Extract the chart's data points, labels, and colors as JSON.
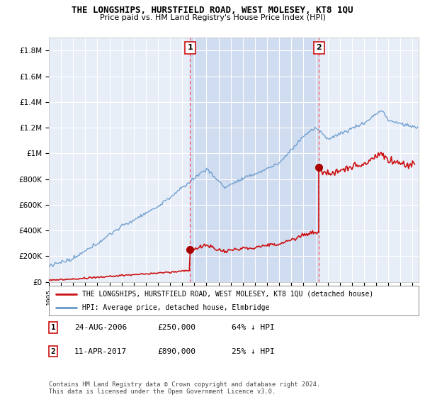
{
  "title": "THE LONGSHIPS, HURSTFIELD ROAD, WEST MOLESEY, KT8 1QU",
  "subtitle": "Price paid vs. HM Land Registry's House Price Index (HPI)",
  "ylabel_ticks": [
    "£0",
    "£200K",
    "£400K",
    "£600K",
    "£800K",
    "£1M",
    "£1.2M",
    "£1.4M",
    "£1.6M",
    "£1.8M"
  ],
  "ylabel_values": [
    0,
    200000,
    400000,
    600000,
    800000,
    1000000,
    1200000,
    1400000,
    1600000,
    1800000
  ],
  "ylim": [
    0,
    1900000
  ],
  "xlim_start": 1995.0,
  "xlim_end": 2025.5,
  "sale1_x": 2006.65,
  "sale1_y": 250000,
  "sale2_x": 2017.28,
  "sale2_y": 890000,
  "background_color": "#ffffff",
  "plot_bg_color": "#e8eef8",
  "shade_color": "#d0dcf0",
  "grid_color": "#ffffff",
  "hpi_line_color": "#6699cc",
  "price_line_color": "#cc1111",
  "vline_color": "#ff4444",
  "sale_dot_color": "#aa0000",
  "legend_label1": "THE LONGSHIPS, HURSTFIELD ROAD, WEST MOLESEY, KT8 1QU (detached house)",
  "legend_label2": "HPI: Average price, detached house, Elmbridge",
  "table_row1": [
    "1",
    "24-AUG-2006",
    "£250,000",
    "64% ↓ HPI"
  ],
  "table_row2": [
    "2",
    "11-APR-2017",
    "£890,000",
    "25% ↓ HPI"
  ],
  "footer": "Contains HM Land Registry data © Crown copyright and database right 2024.\nThis data is licensed under the Open Government Licence v3.0."
}
